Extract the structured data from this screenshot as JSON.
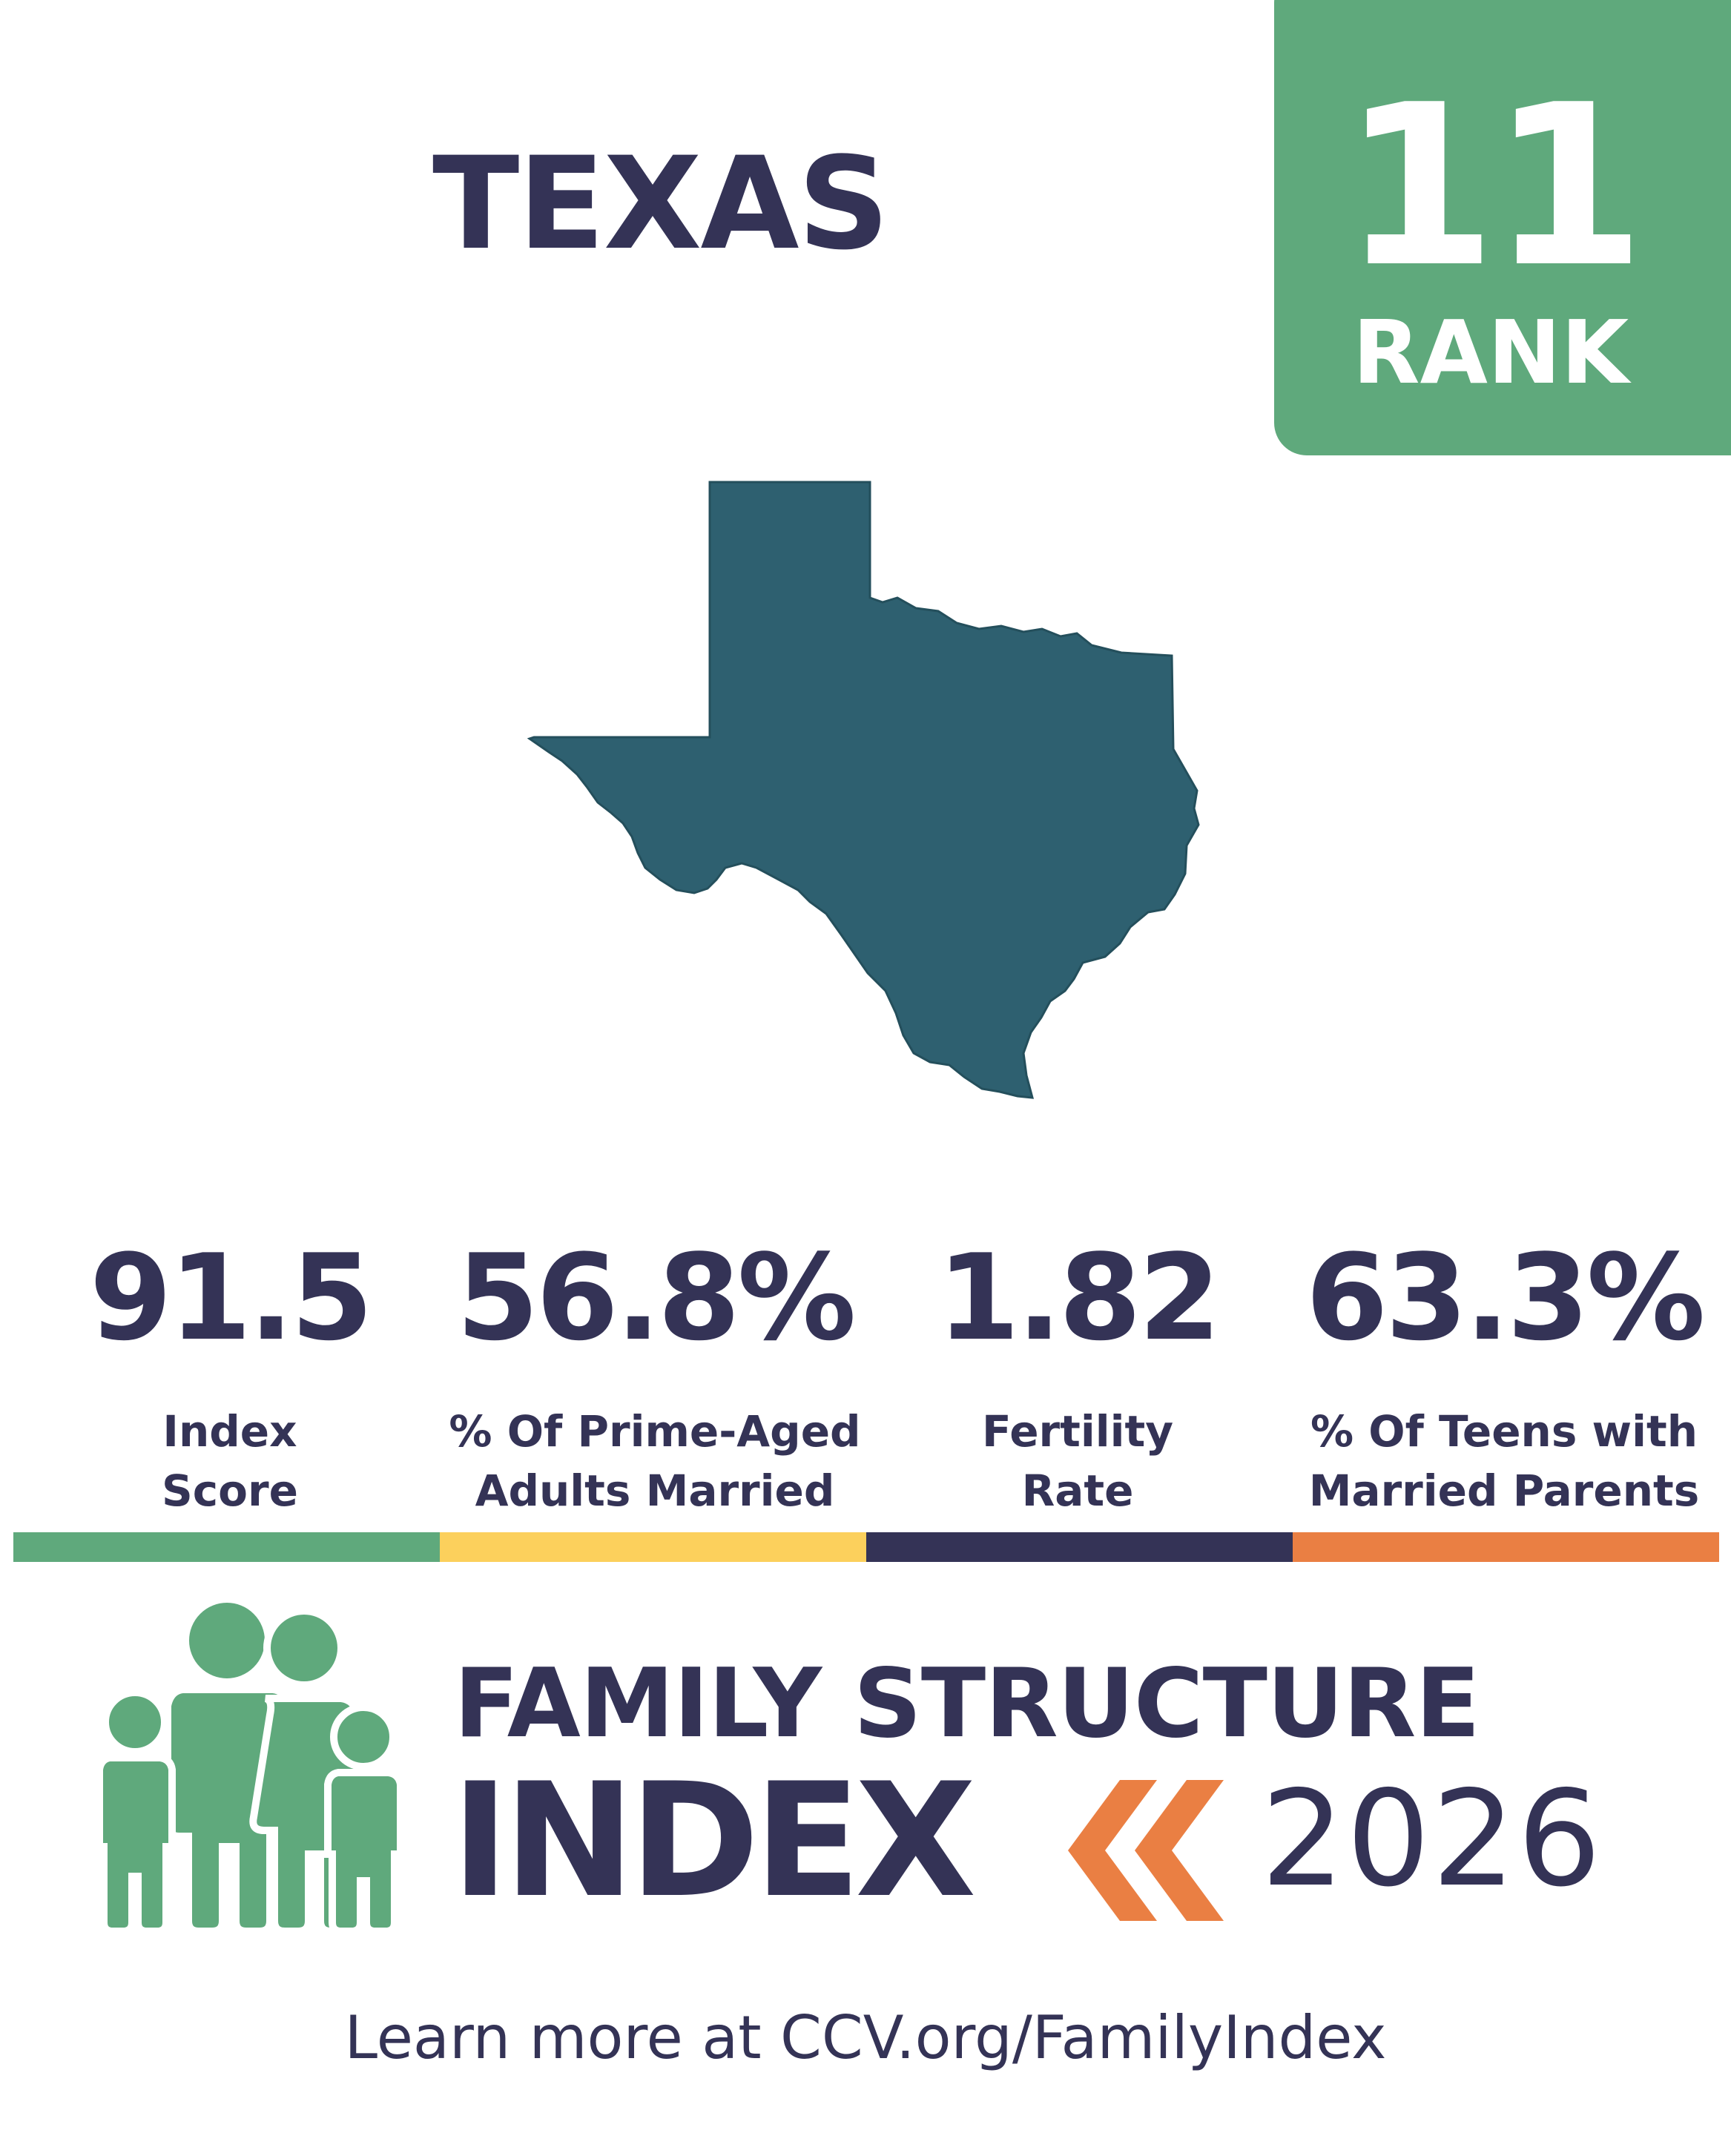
{
  "state": "TEXAS",
  "rank": {
    "number": "11",
    "label": "RANK"
  },
  "stats": [
    {
      "value": "91.5",
      "label_lines": [
        "Index",
        "Score"
      ]
    },
    {
      "value": "56.8%",
      "label_lines": [
        "% Of Prime-Aged",
        "Adults Married"
      ]
    },
    {
      "value": "1.82",
      "label_lines": [
        "Fertility",
        "Rate"
      ]
    },
    {
      "value": "63.3%",
      "label_lines": [
        "% Of Teens with",
        "Married Parents"
      ]
    }
  ],
  "colors": {
    "navy": "#343356",
    "green": "#5fa97c",
    "yellow": "#fcd05c",
    "orange": "#ea7f43",
    "map_fill": "#2e6070"
  },
  "logo": {
    "line1": "FAMILY STRUCTURE",
    "line2": "INDEX",
    "year": "2026",
    "icon": "family-icon"
  },
  "footer": "Learn more at CCV.org/FamilyIndex"
}
